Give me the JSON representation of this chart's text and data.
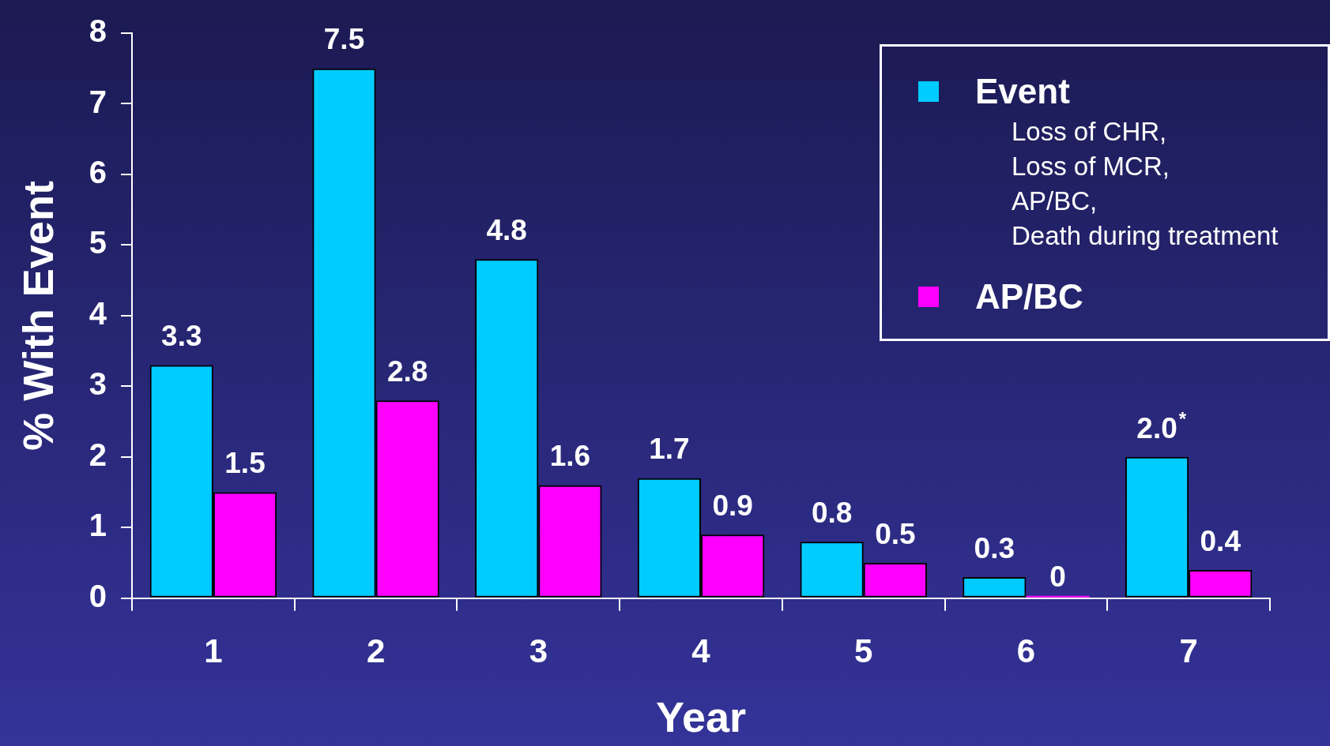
{
  "chart_data": {
    "type": "bar",
    "xlabel": "Year",
    "ylabel": "% With Event",
    "categories": [
      "1",
      "2",
      "3",
      "4",
      "5",
      "6",
      "7"
    ],
    "series": [
      {
        "name": "Event",
        "color": "#00ccff",
        "values": [
          3.3,
          7.5,
          4.8,
          1.7,
          0.8,
          0.3,
          2.0
        ],
        "value_labels": [
          "3.3",
          "7.5",
          "4.8",
          "1.7",
          "0.8",
          "0.3",
          "2.0$^{*}$"
        ]
      },
      {
        "name": "AP/BC",
        "color": "#ff00ff",
        "values": [
          1.5,
          2.8,
          1.6,
          0.9,
          0.5,
          0,
          0.4
        ],
        "value_labels": [
          "1.5",
          "2.8",
          "1.6",
          "0.9",
          "0.5",
          "0",
          "0.4"
        ]
      }
    ],
    "annotations": [
      "Loss of CHR,",
      "Loss of MCR,",
      "AP/BC,",
      "Death during treatment"
    ],
    "ylim": [
      0,
      8
    ],
    "yticks": [
      0,
      1,
      2,
      3,
      4,
      5,
      6,
      7,
      8
    ],
    "grid": false,
    "legend": "top right"
  }
}
